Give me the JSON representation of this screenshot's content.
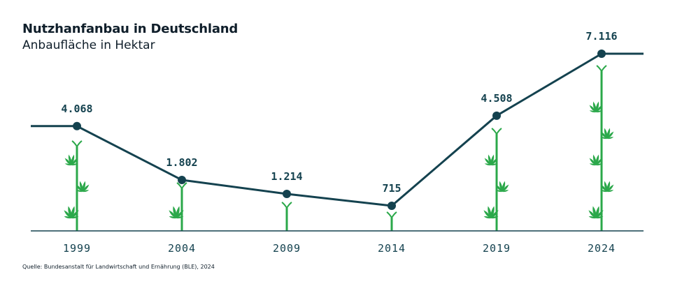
{
  "title": "Nutzhanfanbau in Deutschland",
  "subtitle": "Anbaufläche in Hektar",
  "source": "Quelle: Bundesanstalt für Landwirtschaft und Ernährung (BLE), 2024",
  "colors": {
    "line": "#14424f",
    "plant": "#2ba84a",
    "axis": "#14424f"
  },
  "chart_data": {
    "type": "line",
    "title": "Nutzhanfanbau in Deutschland",
    "subtitle": "Anbaufläche in Hektar",
    "x": [
      "1999",
      "2004",
      "2009",
      "2014",
      "2019",
      "2024"
    ],
    "values": [
      4068,
      1802,
      1214,
      715,
      4508,
      7116
    ],
    "value_labels": [
      "4.068",
      "1.802",
      "1.214",
      "715",
      "4.508",
      "7.116"
    ],
    "ylim": [
      0,
      8000
    ],
    "grid": false,
    "legend": "none"
  }
}
